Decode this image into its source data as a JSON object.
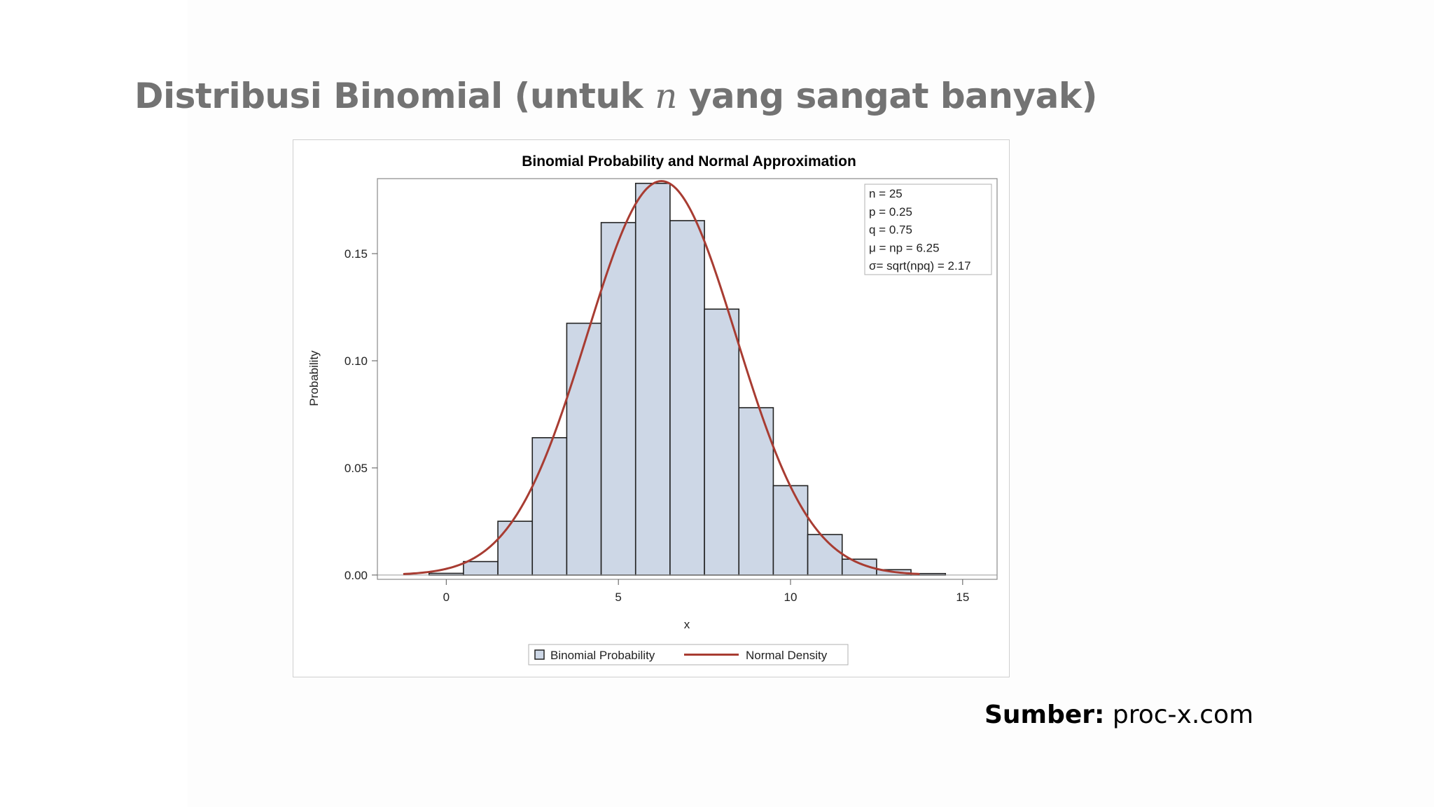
{
  "slide": {
    "title_before": "Distribusi Binomial (untuk ",
    "title_var": "n",
    "title_after": " yang sangat banyak)",
    "source_label": "Sumber:",
    "source_value": " proc-x.com"
  },
  "chart_data": {
    "type": "bar",
    "title": "Binomial Probability and Normal Approximation",
    "xlabel": "x",
    "ylabel": "Probability",
    "xlim": [
      -2,
      16
    ],
    "ylim": [
      -0.002,
      0.185
    ],
    "x_ticks": [
      0,
      5,
      10,
      15
    ],
    "x_tick_labels": [
      "0",
      "5",
      "10",
      "15"
    ],
    "y_ticks": [
      0,
      0.05,
      0.1,
      0.15
    ],
    "y_tick_labels": [
      "0.00",
      "0.05",
      "0.10",
      "0.15"
    ],
    "grid": false,
    "series": [
      {
        "name": "Binomial Probability",
        "kind": "bar",
        "x": [
          0,
          1,
          2,
          3,
          4,
          5,
          6,
          7,
          8,
          9,
          10,
          11,
          12,
          13,
          14
        ],
        "values": [
          0.0008,
          0.0063,
          0.0251,
          0.0641,
          0.1175,
          0.1645,
          0.1828,
          0.1654,
          0.1241,
          0.0781,
          0.0417,
          0.0189,
          0.0074,
          0.0025,
          0.0007
        ],
        "color": "#cdd7e6",
        "edge_color": "#222222"
      },
      {
        "name": "Normal Density",
        "kind": "line",
        "mu": 6.25,
        "sigma": 2.17,
        "x_range": [
          -1.25,
          13.75
        ],
        "color": "#a83c32"
      }
    ],
    "legend_position": "bottom",
    "annotation_lines": [
      "n = 25",
      "p = 0.25",
      "q = 0.75",
      "μ = np = 6.25",
      "σ= sqrt(npq) = 2.17"
    ],
    "annotation_position": "top-right"
  }
}
